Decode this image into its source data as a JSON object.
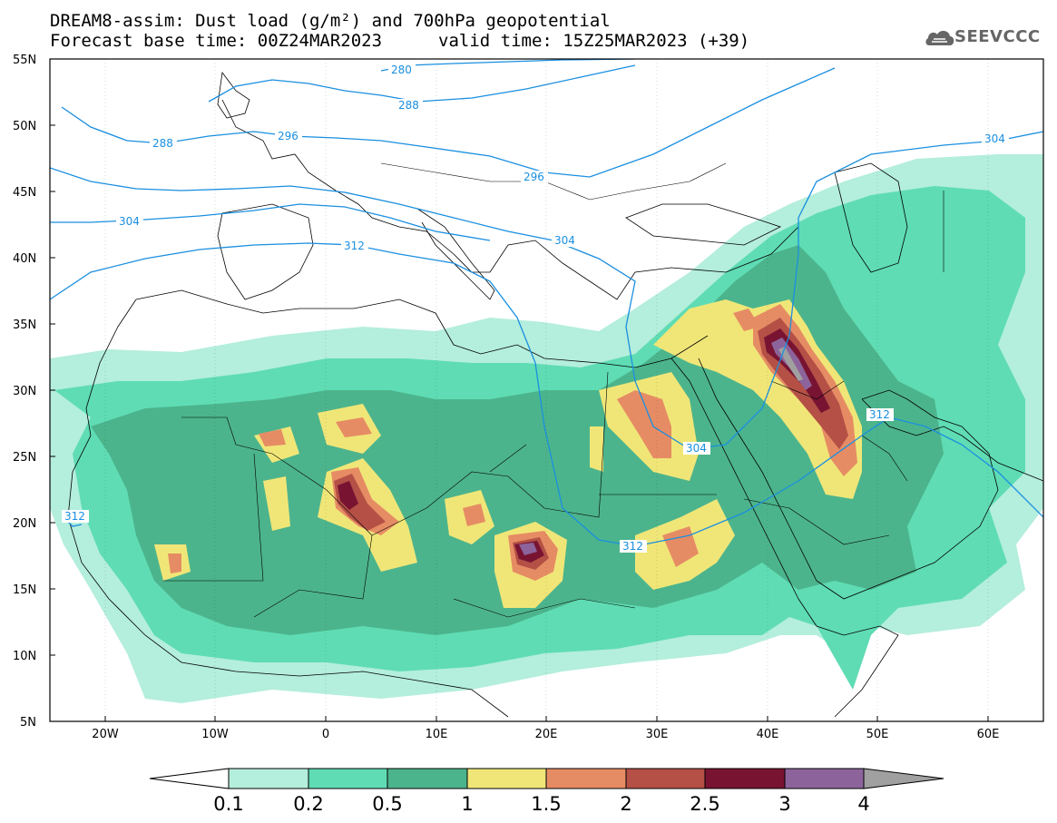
{
  "title": {
    "line1": "DREAM8-assim: Dust load (g/m²) and 700hPa geopotential",
    "line2": "Forecast base time: 00Z24MAR2023",
    "valid": "valid time: 15Z25MAR2023 (+39)"
  },
  "logo": {
    "text": "SEEVCCC",
    "icon": "cloud-icon"
  },
  "axes": {
    "lat_labels": [
      "55N",
      "50N",
      "45N",
      "40N",
      "35N",
      "30N",
      "25N",
      "20N",
      "15N",
      "10N",
      "5N"
    ],
    "lon_labels": [
      "20W",
      "10W",
      "0",
      "10E",
      "20E",
      "30E",
      "40E",
      "50E",
      "60E"
    ],
    "lat_range": [
      5,
      55
    ],
    "lon_range": [
      -25,
      65
    ]
  },
  "colorbar": {
    "levels": [
      "0.1",
      "0.2",
      "0.5",
      "1",
      "1.5",
      "2",
      "2.5",
      "3",
      "4"
    ],
    "colors": [
      "#b4eedc",
      "#5fdcb4",
      "#4cb48c",
      "#f0e678",
      "#e68c64",
      "#b45046",
      "#781432",
      "#8c649b",
      "#a0a0a0"
    ]
  },
  "contours": {
    "color": "#1a8fe0",
    "labels": [
      "280",
      "288",
      "288",
      "296",
      "296",
      "304",
      "304",
      "304",
      "304",
      "312",
      "312",
      "312",
      "312"
    ]
  }
}
